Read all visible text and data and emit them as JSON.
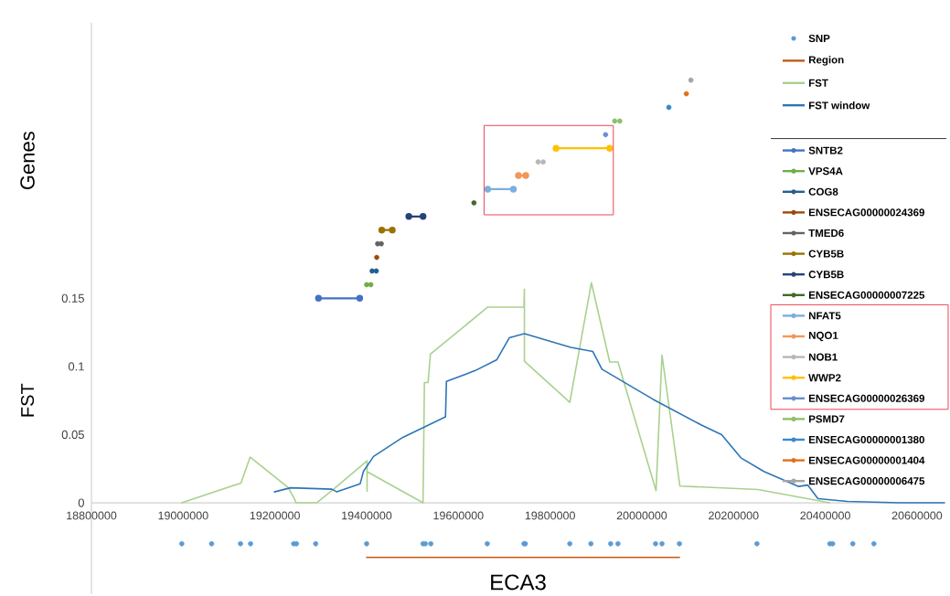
{
  "chart_data": {
    "type": "line",
    "xlabel": "ECA3",
    "ylabel": "FST",
    "annotations": [
      "Genes"
    ],
    "xlim": [
      18800000,
      20660000
    ],
    "ylim": [
      -0.067,
      0.352
    ],
    "xticks": [
      18800000,
      19000000,
      19200000,
      19400000,
      19600000,
      19800000,
      20000000,
      20200000,
      20400000,
      20600000
    ],
    "yticks": [
      0,
      0.05,
      0.1,
      0.15
    ],
    "legend": "top right",
    "series": [
      {
        "name": "SNP",
        "type": "scatter",
        "marker": "circle",
        "color": "#5b9bd5",
        "x": [
          18997000,
          19062000,
          19125000,
          19147000,
          19241000,
          19247000,
          19289000,
          19400000,
          19523000,
          19528000,
          19540000,
          19663000,
          19743000,
          19746000,
          19843000,
          19889000,
          19932000,
          19948000,
          20030000,
          20044000,
          20082000,
          20251000,
          20410000,
          20416000,
          20460000,
          20506000
        ],
        "values": [
          -0.03,
          -0.03,
          -0.03,
          -0.03,
          -0.03,
          -0.03,
          -0.03,
          -0.03,
          -0.03,
          -0.03,
          -0.03,
          -0.03,
          -0.03,
          -0.03,
          -0.03,
          -0.03,
          -0.03,
          -0.03,
          -0.03,
          -0.03,
          -0.03,
          -0.03,
          -0.03,
          -0.03,
          -0.03,
          -0.03
        ]
      },
      {
        "name": "Region",
        "type": "line",
        "color": "#c55a11",
        "x": [
          19400000,
          20082000
        ],
        "values": [
          -0.04,
          -0.04
        ]
      },
      {
        "name": "FST",
        "type": "line",
        "color": "#a9d18e",
        "x": [
          18997000,
          19126000,
          19146000,
          19229000,
          19242000,
          19246000,
          19291000,
          19328000,
          19401000,
          19401000,
          19401000,
          19523000,
          19526000,
          19534000,
          19539000,
          19664000,
          19743000,
          19744000,
          19744000,
          19843000,
          19890000,
          19930000,
          19948000,
          20031000,
          20044000,
          20083000,
          20253000,
          20409000
        ],
        "values": [
          0,
          0.0145,
          0.0335,
          0.0112,
          0.0033,
          0,
          0,
          0.01,
          0.0308,
          0.0085,
          0.0228,
          0,
          0.0882,
          0.0882,
          0.109,
          0.1435,
          0.1435,
          0.1567,
          0.1038,
          0.0737,
          0.1614,
          0.1033,
          0.1033,
          0.0089,
          0.1083,
          0.0123,
          0.0098,
          0
        ]
      },
      {
        "name": "FST window",
        "type": "line",
        "color": "#2e75b6",
        "x": [
          19199000,
          19234000,
          19324000,
          19335000,
          19386000,
          19393000,
          19415000,
          19479000,
          19572000,
          19574000,
          19637000,
          19684000,
          19711000,
          19744000,
          19845000,
          19893000,
          19913000,
          20024000,
          20130000,
          20174000,
          20216000,
          20266000,
          20342000,
          20362000,
          20384000,
          20448000,
          20561000,
          20660000
        ],
        "values": [
          0.008,
          0.011,
          0.01,
          0.008,
          0.014,
          0.023,
          0.034,
          0.048,
          0.063,
          0.089,
          0.097,
          0.105,
          0.121,
          0.124,
          0.114,
          0.111,
          0.098,
          0.076,
          0.057,
          0.05,
          0.033,
          0.023,
          0.012,
          0.013,
          0.003,
          0.001,
          0,
          0
        ]
      },
      {
        "name": "SNTB2",
        "marker": "circle",
        "color": "#4472c4",
        "x": [
          19295000,
          19385000
        ],
        "values": [
          0.15,
          0.15
        ]
      },
      {
        "name": "VPS4A",
        "type": "scatter",
        "marker": "circle",
        "color": "#70ad47",
        "x": [
          19400000,
          19409000
        ],
        "values": [
          0.16,
          0.16
        ]
      },
      {
        "name": "COG8",
        "type": "scatter",
        "marker": "circle",
        "color": "#255e91",
        "x": [
          19412000,
          19421000
        ],
        "values": [
          0.17,
          0.17
        ]
      },
      {
        "name": "ENSECAG00000024369",
        "type": "scatter",
        "marker": "circle",
        "color": "#9e480e",
        "x": [
          19422000
        ],
        "values": [
          0.18
        ]
      },
      {
        "name": "TMED6",
        "type": "scatter",
        "marker": "circle",
        "color": "#636363",
        "x": [
          19424000,
          19432000
        ],
        "values": [
          0.19,
          0.19
        ]
      },
      {
        "name": "CYB5B",
        "marker": "circle",
        "color": "#997300",
        "x": [
          19433000,
          19456000
        ],
        "values": [
          0.2,
          0.2
        ]
      },
      {
        "name": "CYB5B",
        "marker": "circle",
        "color": "#264478",
        "x": [
          19492000,
          19523000
        ],
        "values": [
          0.21,
          0.21
        ]
      },
      {
        "name": "ENSECAG00000007225",
        "type": "scatter",
        "marker": "circle",
        "color": "#43682b",
        "x": [
          19634000
        ],
        "values": [
          0.22
        ]
      },
      {
        "name": "NFAT5",
        "marker": "circle",
        "color": "#7cafdd",
        "x": [
          19664000,
          19720000
        ],
        "values": [
          0.23,
          0.23
        ]
      },
      {
        "name": "NQO1",
        "marker": "circle",
        "color": "#f1975a",
        "x": [
          19731000,
          19747000
        ],
        "values": [
          0.24,
          0.24
        ]
      },
      {
        "name": "NOB1",
        "type": "scatter",
        "marker": "circle",
        "color": "#b7b7b7",
        "x": [
          19774000,
          19785000
        ],
        "values": [
          0.25,
          0.25
        ]
      },
      {
        "name": "WWP2",
        "marker": "circle",
        "color": "#ffc000",
        "x": [
          19813000,
          19930000
        ],
        "values": [
          0.26,
          0.26
        ]
      },
      {
        "name": "ENSECAG00000026369",
        "type": "scatter",
        "marker": "circle",
        "color": "#698ed0",
        "x": [
          19921000
        ],
        "values": [
          0.27
        ]
      },
      {
        "name": "PSMD7",
        "type": "scatter",
        "marker": "circle",
        "color": "#8cc168",
        "x": [
          19941000,
          19952000
        ],
        "values": [
          0.28,
          0.28
        ]
      },
      {
        "name": "ENSECAG00000001380",
        "type": "scatter",
        "marker": "circle",
        "color": "#3b87d0",
        "x": [
          20059000
        ],
        "values": [
          0.29
        ]
      },
      {
        "name": "ENSECAG00000001404",
        "type": "scatter",
        "marker": "circle",
        "color": "#e0701a",
        "x": [
          20097000
        ],
        "values": [
          0.3
        ]
      },
      {
        "name": "ENSECAG00000006475",
        "type": "scatter",
        "marker": "circle",
        "color": "#a5a5a5",
        "x": [
          20107000
        ],
        "values": [
          0.31
        ]
      }
    ]
  }
}
